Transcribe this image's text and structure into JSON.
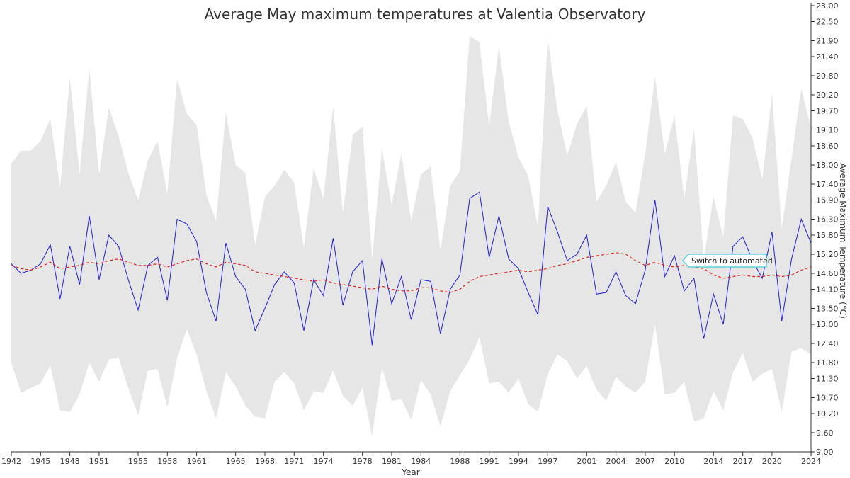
{
  "chart_data": {
    "type": "line",
    "title": "Average May maximum temperatures at Valentia Observatory",
    "xlabel": "Year",
    "ylabel": "Average Maximum Temperature (°C)",
    "x_range": [
      1942,
      2024
    ],
    "ylim": [
      9.0,
      23.0
    ],
    "y_axis_side": "right",
    "grid": false,
    "x_ticks": [
      "1942",
      "1945",
      "1948",
      "1951",
      "1955",
      "1958",
      "1961",
      "1965",
      "1968",
      "1971",
      "1974",
      "1978",
      "1981",
      "1984",
      "1988",
      "1991",
      "1994",
      "1997",
      "2001",
      "2004",
      "2007",
      "2010",
      "2014",
      "2017",
      "2020",
      "2024"
    ],
    "y_ticks": [
      "9.00",
      "9.60",
      "10.20",
      "10.70",
      "11.30",
      "11.80",
      "12.40",
      "13.00",
      "13.50",
      "14.10",
      "14.60",
      "15.20",
      "15.80",
      "16.30",
      "16.90",
      "17.40",
      "18.00",
      "18.60",
      "19.10",
      "19.70",
      "20.20",
      "20.80",
      "21.40",
      "21.90",
      "22.50",
      "23.00"
    ],
    "years": [
      1942,
      1943,
      1944,
      1945,
      1946,
      1947,
      1948,
      1949,
      1950,
      1951,
      1952,
      1953,
      1954,
      1955,
      1956,
      1957,
      1958,
      1959,
      1960,
      1961,
      1962,
      1963,
      1964,
      1965,
      1966,
      1967,
      1968,
      1969,
      1970,
      1971,
      1972,
      1973,
      1974,
      1975,
      1976,
      1977,
      1978,
      1979,
      1980,
      1981,
      1982,
      1983,
      1984,
      1985,
      1986,
      1987,
      1988,
      1989,
      1990,
      1991,
      1992,
      1993,
      1994,
      1995,
      1996,
      1997,
      1998,
      1999,
      2000,
      2001,
      2002,
      2003,
      2004,
      2005,
      2006,
      2007,
      2008,
      2009,
      2010,
      2011,
      2012,
      2013,
      2014,
      2015,
      2016,
      2017,
      2018,
      2019,
      2020,
      2021,
      2022,
      2023,
      2024
    ],
    "series": [
      {
        "name": "",
        "style": "solid",
        "color": "#1f1fd6",
        "values": [
          14.9,
          14.6,
          14.7,
          14.9,
          15.5,
          13.8,
          15.45,
          14.25,
          16.4,
          14.4,
          15.8,
          15.45,
          14.4,
          13.45,
          14.85,
          15.1,
          13.75,
          16.3,
          16.15,
          15.6,
          14.0,
          13.1,
          15.55,
          14.5,
          14.1,
          12.8,
          13.5,
          14.25,
          14.65,
          14.3,
          12.8,
          14.4,
          13.9,
          15.7,
          13.6,
          14.65,
          15.0,
          12.35,
          15.05,
          13.65,
          14.5,
          13.15,
          14.4,
          14.35,
          12.7,
          14.1,
          14.55,
          16.95,
          17.15,
          15.1,
          16.4,
          15.05,
          14.75,
          14.0,
          13.3,
          16.7,
          15.9,
          15.0,
          15.2,
          15.8,
          13.95,
          14.0,
          14.65,
          13.9,
          13.65,
          14.7,
          16.9,
          14.5,
          15.15,
          14.05,
          14.45,
          12.55,
          13.95,
          13.0,
          15.45,
          15.75,
          15.0,
          14.45,
          15.9,
          13.1,
          15.05,
          16.3,
          15.55
        ]
      },
      {
        "name": "",
        "style": "dashed",
        "color": "#e0241c",
        "values": [
          14.85,
          14.75,
          14.7,
          14.8,
          14.95,
          14.75,
          14.8,
          14.85,
          14.95,
          14.9,
          15.0,
          15.05,
          14.95,
          14.85,
          14.85,
          14.9,
          14.8,
          14.9,
          15.0,
          15.05,
          14.9,
          14.8,
          14.95,
          14.9,
          14.85,
          14.65,
          14.6,
          14.55,
          14.5,
          14.45,
          14.4,
          14.35,
          14.4,
          14.3,
          14.25,
          14.2,
          14.15,
          14.1,
          14.2,
          14.1,
          14.05,
          14.05,
          14.15,
          14.15,
          14.05,
          14.0,
          14.1,
          14.35,
          14.5,
          14.55,
          14.6,
          14.65,
          14.7,
          14.65,
          14.7,
          14.75,
          14.85,
          14.9,
          15.0,
          15.1,
          15.15,
          15.2,
          15.25,
          15.2,
          15.0,
          14.85,
          14.95,
          14.85,
          14.8,
          14.85,
          14.8,
          14.75,
          14.55,
          14.45,
          14.5,
          14.55,
          14.5,
          14.5,
          14.55,
          14.5,
          14.55,
          14.7,
          14.8
        ]
      }
    ],
    "range_band": {
      "color": "#e6e6e6",
      "lower": [
        11.8,
        10.85,
        11.0,
        11.15,
        11.7,
        10.3,
        10.25,
        10.8,
        11.8,
        11.2,
        11.9,
        11.95,
        11.0,
        10.15,
        11.55,
        11.6,
        10.4,
        11.95,
        12.85,
        12.05,
        10.9,
        10.05,
        11.5,
        11.05,
        10.45,
        10.1,
        10.05,
        11.2,
        11.5,
        11.15,
        10.3,
        10.9,
        10.85,
        11.55,
        10.75,
        10.45,
        11.0,
        9.5,
        11.65,
        10.6,
        10.65,
        10.0,
        11.25,
        10.8,
        9.8,
        10.9,
        11.4,
        11.9,
        12.6,
        11.15,
        11.2,
        10.85,
        11.3,
        10.5,
        10.25,
        11.45,
        12.05,
        11.85,
        11.3,
        11.7,
        10.95,
        10.6,
        11.35,
        11.05,
        10.85,
        11.2,
        13.0,
        10.8,
        10.85,
        11.2,
        9.95,
        10.05,
        10.9,
        10.3,
        11.5,
        12.1,
        11.2,
        11.45,
        11.6,
        10.25,
        12.15,
        12.25,
        12.05
      ],
      "upper": [
        18.05,
        18.45,
        18.45,
        18.75,
        19.45,
        17.3,
        20.75,
        17.7,
        21.05,
        17.7,
        19.8,
        18.9,
        17.75,
        16.9,
        18.15,
        18.75,
        17.1,
        20.7,
        19.6,
        19.25,
        17.05,
        16.25,
        19.65,
        18.0,
        17.75,
        15.5,
        17.0,
        17.35,
        17.85,
        17.45,
        15.4,
        17.9,
        16.95,
        19.85,
        16.5,
        18.95,
        19.2,
        15.05,
        18.5,
        16.75,
        18.35,
        16.25,
        17.7,
        17.95,
        15.3,
        17.35,
        17.8,
        22.05,
        21.85,
        19.2,
        21.75,
        19.35,
        18.25,
        17.65,
        16.05,
        22.0,
        19.7,
        18.3,
        19.3,
        19.85,
        16.85,
        17.35,
        18.1,
        16.85,
        16.5,
        18.35,
        20.75,
        18.35,
        19.55,
        16.95,
        19.15,
        15.05,
        17.0,
        15.75,
        19.55,
        19.45,
        18.85,
        17.55,
        20.25,
        16.0,
        18.2,
        20.4,
        19.15
      ]
    },
    "annotations": [
      {
        "text": "Switch to automated",
        "year": 2011,
        "value": 15.0,
        "border_color": "#3ec9d6"
      }
    ]
  }
}
